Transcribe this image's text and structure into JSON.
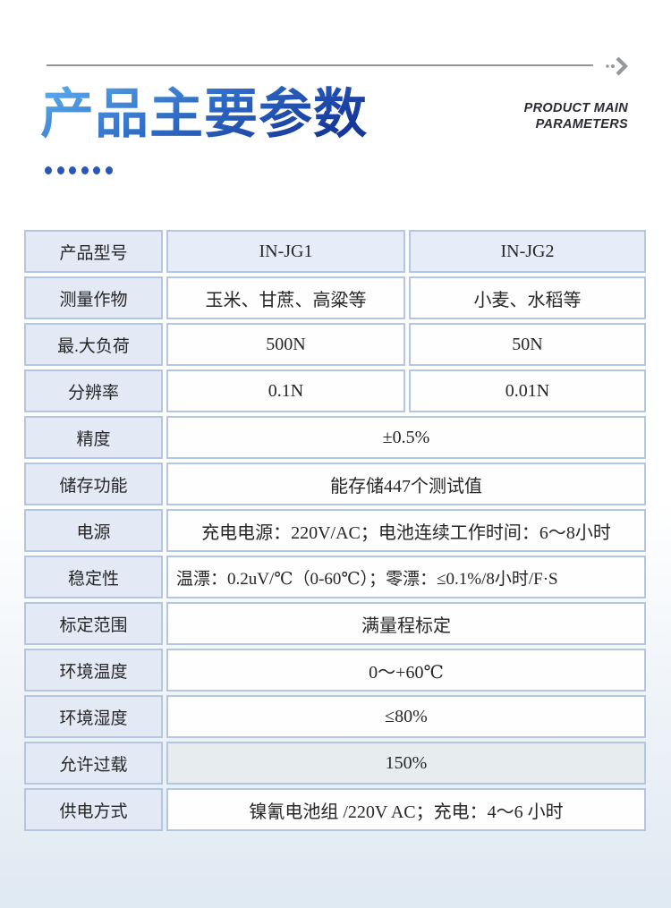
{
  "header": {
    "title": "产品主要参数",
    "subtitle_line1": "PRODUCT MAIN",
    "subtitle_line2": "PARAMETERS",
    "dots_count": 6,
    "arrow_icon": "double-chevron-right-icon"
  },
  "colors": {
    "page_bg_top": "#ffffff",
    "page_bg_bottom": "#dfe9f2",
    "title_grad_start": "#58a7e9",
    "title_grad_mid": "#2f6cc6",
    "title_grad_end": "#16389b",
    "dot": "#2a57b5",
    "rule": "#949494",
    "arrow": "#95989b",
    "subtitle_text": "#2b2b33",
    "table_border": "#b4c7e1",
    "label_bg": "#e3eaf6",
    "header_bg": "#e6edf8",
    "value_bg": "#fefefe",
    "highlight_bg": "#e7ecef",
    "cell_text": "#262626"
  },
  "table": {
    "rows": [
      {
        "label": "产品型号",
        "values": [
          "IN-JG1",
          "IN-JG2"
        ],
        "header": true
      },
      {
        "label": "测量作物",
        "values": [
          "玉米、甘蔗、高粱等",
          "小麦、水稻等"
        ]
      },
      {
        "label": "最.大负荷",
        "values": [
          "500N",
          "50N"
        ]
      },
      {
        "label": "分辨率",
        "values": [
          "0.1N",
          "0.01N"
        ]
      },
      {
        "label": "精度",
        "values": [
          "±0.5%"
        ]
      },
      {
        "label": "储存功能",
        "values": [
          "能存储447个测试值"
        ]
      },
      {
        "label": "电源",
        "values": [
          "充电电源：220V/AC；电池连续工作时间：6～8小时"
        ]
      },
      {
        "label": "稳定性",
        "values": [
          "温漂：0.2uV/℃（0-60℃）；零漂：≤0.1%/8小时/F·S"
        ],
        "align": "left"
      },
      {
        "label": "标定范围",
        "values": [
          "满量程标定"
        ]
      },
      {
        "label": "环境温度",
        "values": [
          "0～+60℃"
        ]
      },
      {
        "label": "环境湿度",
        "values": [
          "≤80%"
        ]
      },
      {
        "label": "允许过载",
        "values": [
          "150%"
        ],
        "highlight": true
      },
      {
        "label": "供电方式",
        "values": [
          "镍氰电池组 /220V AC；充电：4～6 小时"
        ]
      }
    ]
  }
}
